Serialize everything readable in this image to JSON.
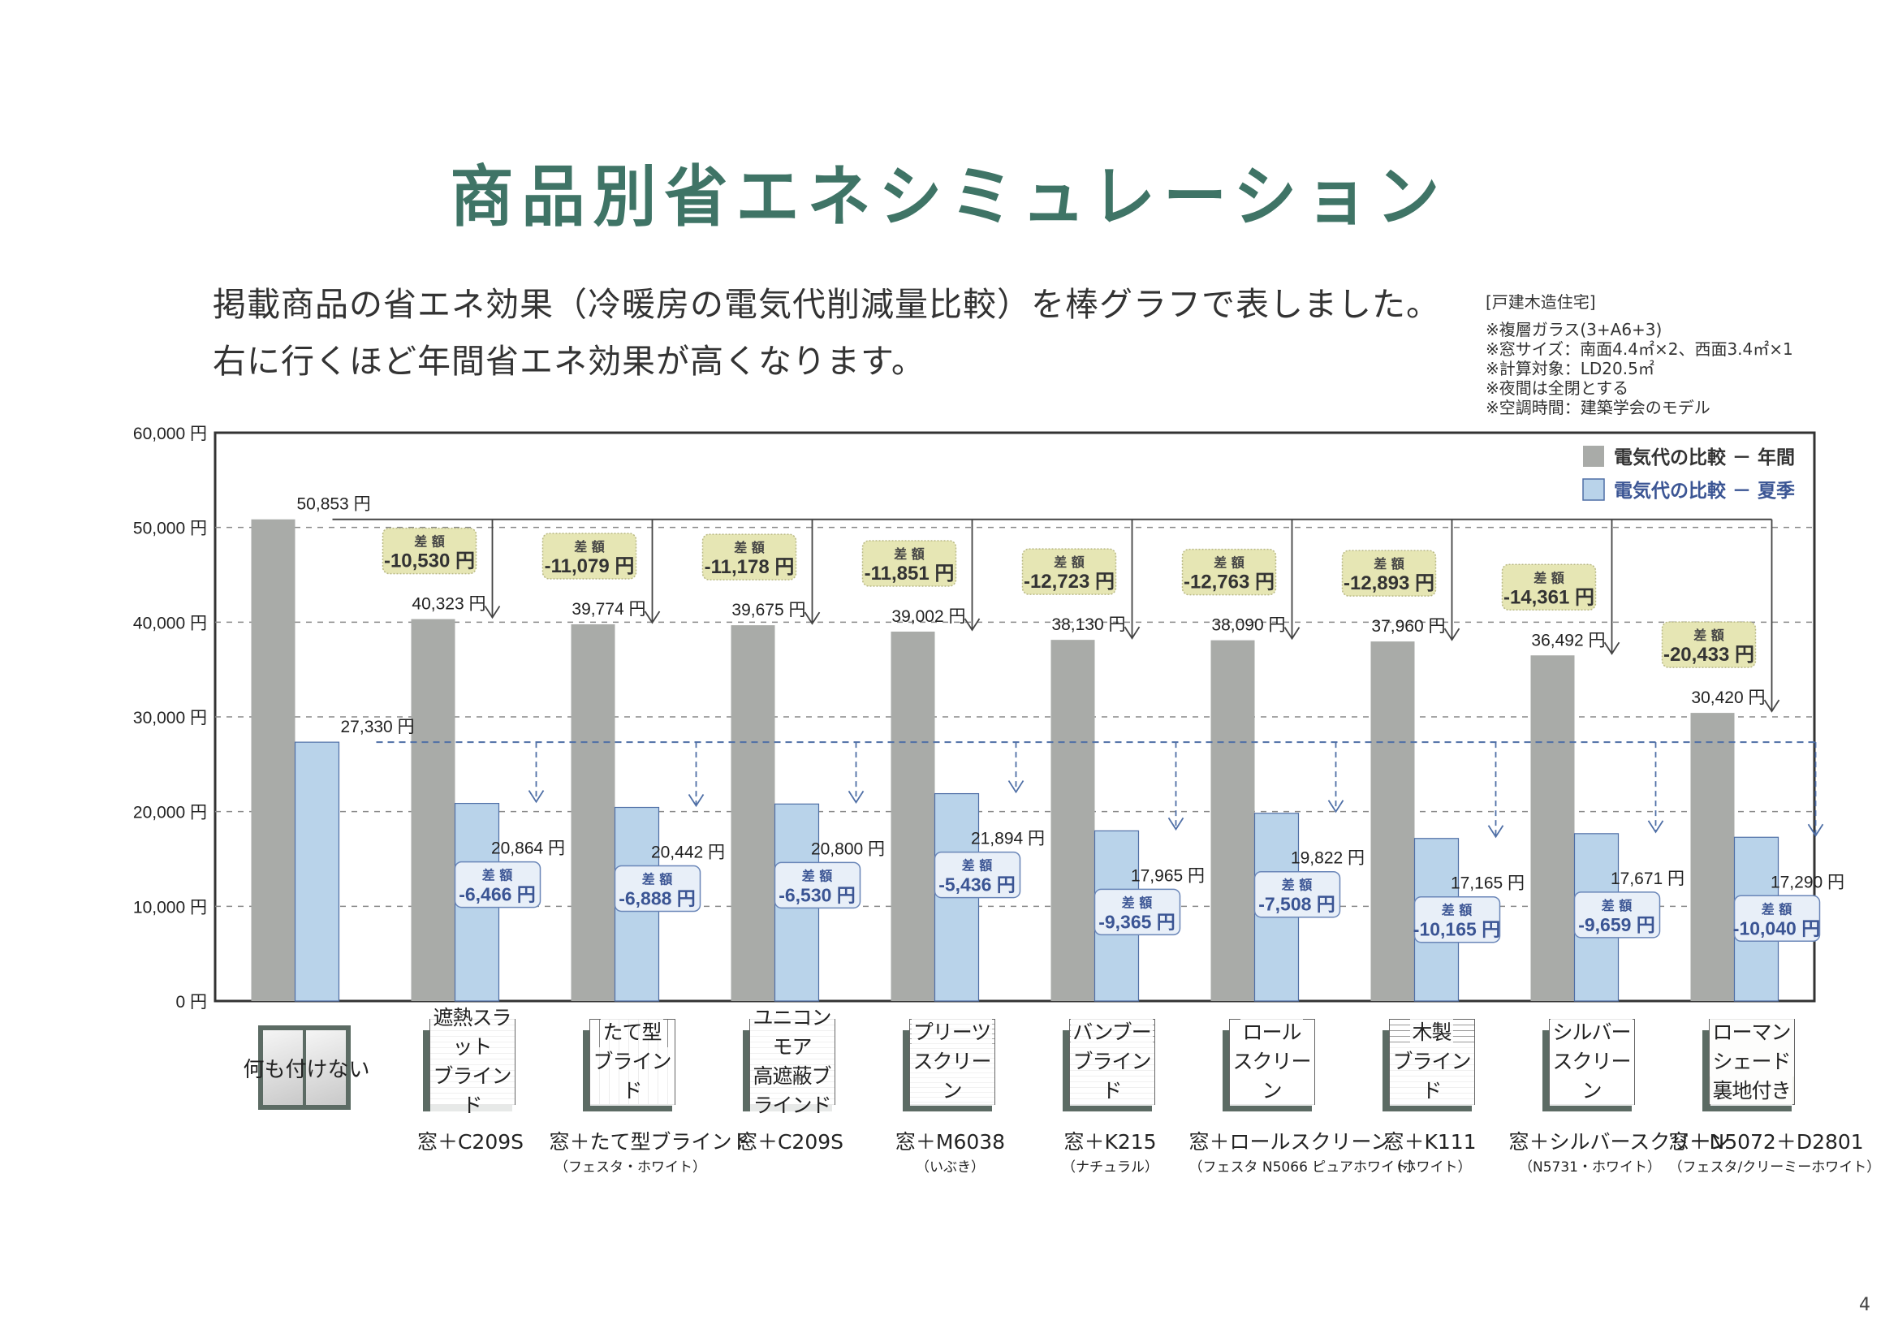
{
  "title": "商品別省エネシミュレーション",
  "intro": {
    "line1": "掲載商品の省エネ効果（冷暖房の電気代削減量比較）を棒グラフで表しました。",
    "line2": "右に行くほど年間省エネ効果が高くなります。"
  },
  "notes": {
    "heading": "[戸建木造住宅]",
    "items": [
      "※複層ガラス(3+A6+3)",
      "※窓サイズ：南面4.4㎡×2、西面3.4㎡×1",
      "※計算対象：LD20.5㎡",
      "※夜間は全閉とする",
      "※空調時間：建築学会のモデル"
    ]
  },
  "colors": {
    "title": "#3f7466",
    "annual_bar": "#a9aba8",
    "summer_bar": "#b9d3ea",
    "summer_bar_edge": "#4f6fa6",
    "annual_callout_bg": "#e6e6b4",
    "summer_callout_bg": "#e8eff8",
    "summer_text": "#3b5594"
  },
  "chart_data": {
    "type": "bar",
    "title": "",
    "xlabel": "",
    "ylabel": "",
    "ylim": [
      0,
      60000
    ],
    "yticks": [
      0,
      10000,
      20000,
      30000,
      40000,
      50000,
      60000
    ],
    "ytick_labels": [
      "0 円",
      "10,000 円",
      "20,000 円",
      "30,000 円",
      "40,000 円",
      "50,000 円",
      "60,000 円"
    ],
    "grid": "horizontal-dashed",
    "legend_position": "top-right",
    "unit": "円",
    "diff_label": "差 額",
    "categories": [
      {
        "icon": "何も付けない",
        "icon_style": "window",
        "model": "",
        "sub": ""
      },
      {
        "icon": "遮熱スラット|ブラインド",
        "icon_style": "hslats",
        "model": "窓＋C209S",
        "sub": ""
      },
      {
        "icon": "たて型|ブラインド",
        "icon_style": "vslats",
        "model": "窓＋たて型ブラインド",
        "sub": "（フェスタ・ホワイト）"
      },
      {
        "icon": "ユニコンモア|高遮蔽ブラインド",
        "icon_style": "hslats",
        "model": "窓＋C209S",
        "sub": ""
      },
      {
        "icon": "プリーツ|スクリーン",
        "icon_style": "pleat",
        "model": "窓＋M6038",
        "sub": "（いぶき）"
      },
      {
        "icon": "バンブー|ブラインド",
        "icon_style": "hslats",
        "model": "窓＋K215",
        "sub": "（ナチュラル）"
      },
      {
        "icon": "ロール|スクリーン",
        "icon_style": "plain",
        "model": "窓＋ロールスクリーン",
        "sub": "（フェスタ N5066 ピュアホワイト）"
      },
      {
        "icon": "木製|ブラインド",
        "icon_style": "hslats",
        "model": "窓＋K111",
        "sub": "（ホワイト）"
      },
      {
        "icon": "シルバー|スクリーン",
        "icon_style": "plain",
        "model": "窓＋シルバースクリーン",
        "sub": "（N5731・ホワイト）"
      },
      {
        "icon": "ローマンシェード|裏地付き",
        "icon_style": "roman",
        "model": "窓＋N5072＋D2801",
        "sub": "（フェスタ/クリーミーホワイト）"
      }
    ],
    "series": [
      {
        "name": "電気代の比較 － 年間",
        "values": [
          50853,
          40323,
          39774,
          39675,
          39002,
          38130,
          38090,
          37960,
          36492,
          30420
        ],
        "labels": [
          "50,853 円",
          "40,323 円",
          "39,774 円",
          "39,675 円",
          "39,002 円",
          "38,130 円",
          "38,090 円",
          "37,960 円",
          "36,492 円",
          "30,420 円"
        ],
        "differences": [
          null,
          "-10,530",
          "-11,079",
          "-11,178",
          "-11,851",
          "-12,723",
          "-12,763",
          "-12,893",
          "-14,361",
          "-20,433"
        ]
      },
      {
        "name": "電気代の比較 － 夏季",
        "values": [
          27330,
          20864,
          20442,
          20800,
          21894,
          17965,
          19822,
          17165,
          17671,
          17290
        ],
        "labels": [
          "27,330 円",
          "20,864 円",
          "20,442 円",
          "20,800 円",
          "21,894 円",
          "17,965 円",
          "19,822 円",
          "17,165 円",
          "17,671 円",
          "17,290 円"
        ],
        "differences": [
          null,
          "-6,466",
          "-6,888",
          "-6,530",
          "-5,436",
          "-9,365",
          "-7,508",
          "-10,165",
          "-9,659",
          "-10,040"
        ]
      }
    ]
  },
  "page_number": "4"
}
